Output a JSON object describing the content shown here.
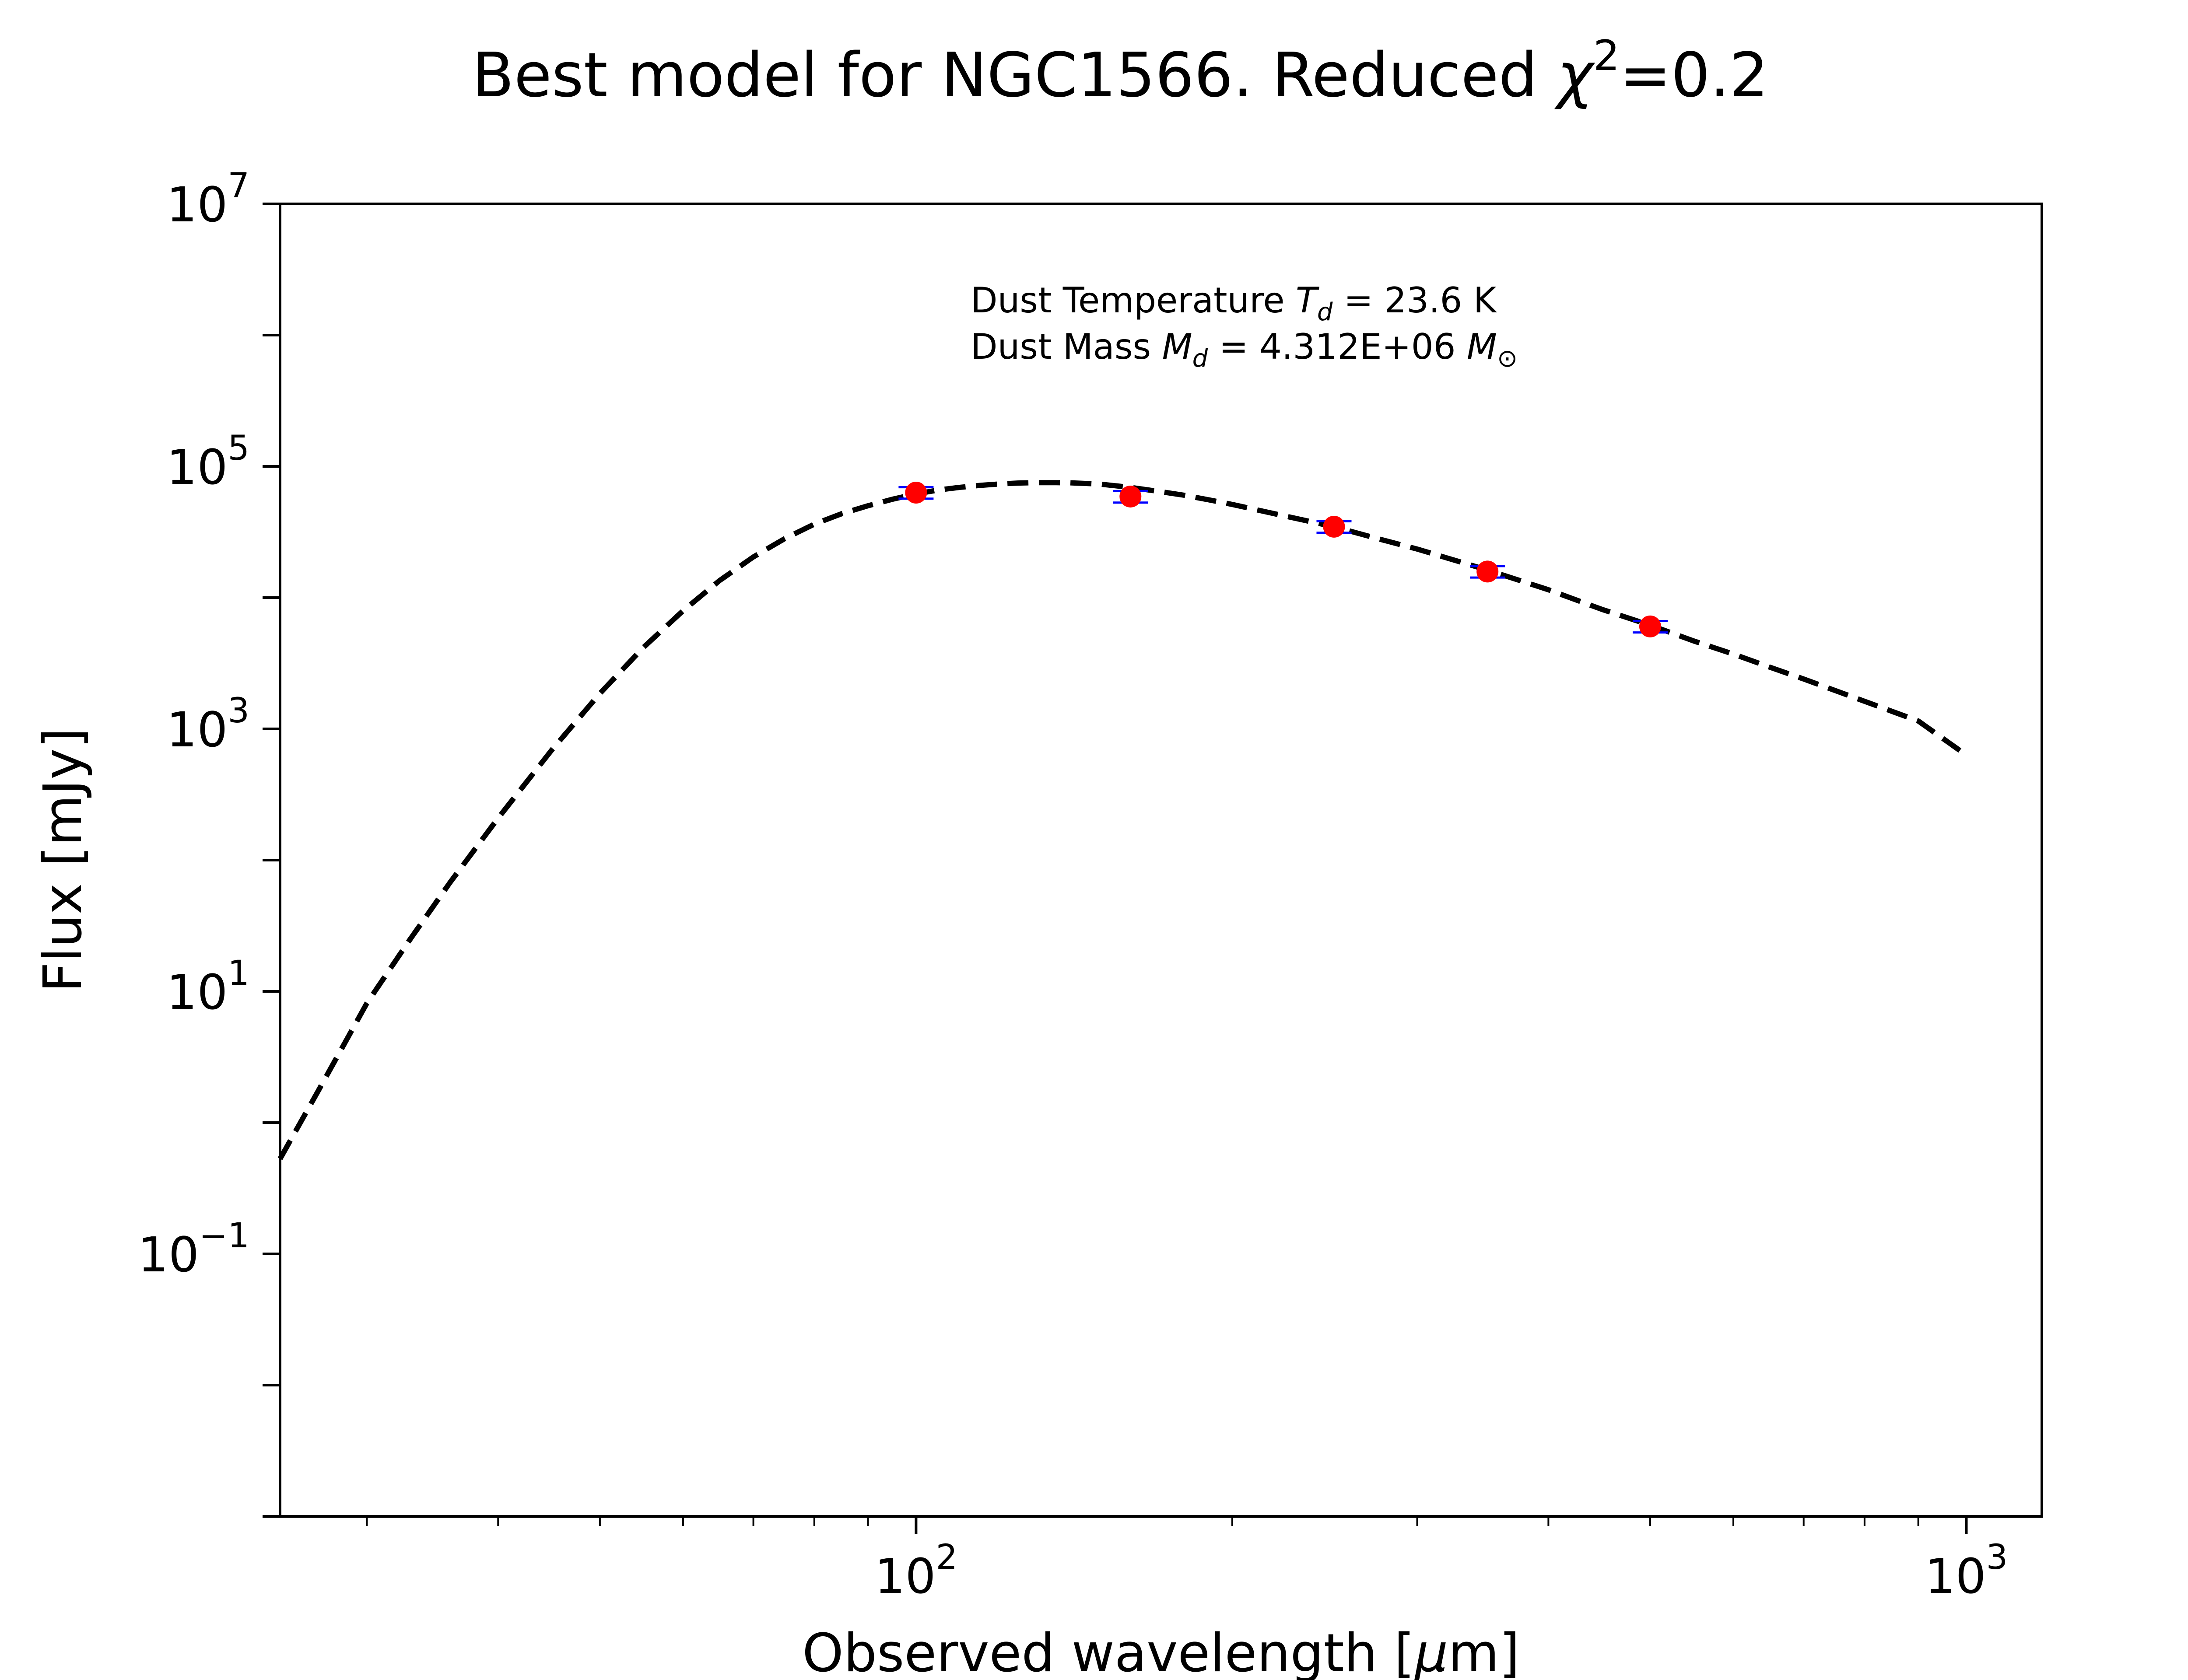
{
  "chart_data": {
    "type": "line",
    "title": {
      "prefix": "Best model for NGC1566. Reduced ",
      "chi": "χ",
      "sup": "2",
      "suffix": "=0.2"
    },
    "xlabel": {
      "prefix": "Observed wavelength [",
      "mu": "μ",
      "suffix": "m]"
    },
    "ylabel": "Flux [mJy]",
    "x_scale": "log",
    "y_scale": "log",
    "xlim": [
      24.8,
      1180
    ],
    "ylim": [
      0.001,
      10000000
    ],
    "x_ticks": [
      {
        "value": 100,
        "base": "10",
        "exp": "2"
      },
      {
        "value": 1000,
        "base": "10",
        "exp": "3"
      }
    ],
    "y_ticks": [
      {
        "value": 0.1,
        "base": "10",
        "exp": "−1"
      },
      {
        "value": 10,
        "base": "10",
        "exp": "1"
      },
      {
        "value": 1000,
        "base": "10",
        "exp": "3"
      },
      {
        "value": 100000,
        "base": "10",
        "exp": "5"
      },
      {
        "value": 10000000,
        "base": "10",
        "exp": "7"
      }
    ],
    "grid": false,
    "annotation": {
      "line1": {
        "text": "Dust Temperature ",
        "sym": "T",
        "sub": "d",
        "val": " = 23.6 K"
      },
      "line2": {
        "text": "Dust Mass ",
        "sym": "M",
        "sub": "d",
        "val": " = 4.312E+06 ",
        "unit": "M",
        "unit_sub": "⊙"
      }
    },
    "series": [
      {
        "kind": "model",
        "style": "dashed",
        "color": "#000000",
        "x": [
          24.8,
          27,
          30,
          33,
          36,
          40,
          45,
          50,
          55,
          60,
          65,
          70,
          75,
          80,
          85,
          90,
          95,
          100,
          105,
          110,
          115,
          120,
          125,
          130,
          135,
          140,
          145,
          150,
          160,
          170,
          180,
          190,
          200,
          225,
          250,
          275,
          300,
          350,
          400,
          450,
          500,
          550,
          600,
          650,
          700,
          800,
          900,
          1000
        ],
        "y": [
          0.53,
          1.78,
          8.13,
          25.1,
          67.6,
          209,
          692,
          1862,
          4169,
          7943,
          13490,
          20420,
          28180,
          36310,
          43650,
          50120,
          56230,
          61660,
          66070,
          69180,
          71610,
          73450,
          74650,
          75160,
          75160,
          74990,
          74140,
          73110,
          69180,
          64570,
          60260,
          55590,
          51290,
          41690,
          34670,
          28180,
          23440,
          16220,
          11480,
          8128,
          6166,
          4677,
          3715,
          2951,
          2399,
          1622,
          1148,
          631
        ]
      },
      {
        "kind": "observed",
        "style": "markers",
        "color": "#ff0000",
        "errorbar_color": "#0000ff",
        "x": [
          100,
          160,
          250,
          350,
          500
        ],
        "y": [
          63100,
          58900,
          34700,
          15800,
          6030
        ],
        "yerr_frac": 0.1
      }
    ]
  }
}
